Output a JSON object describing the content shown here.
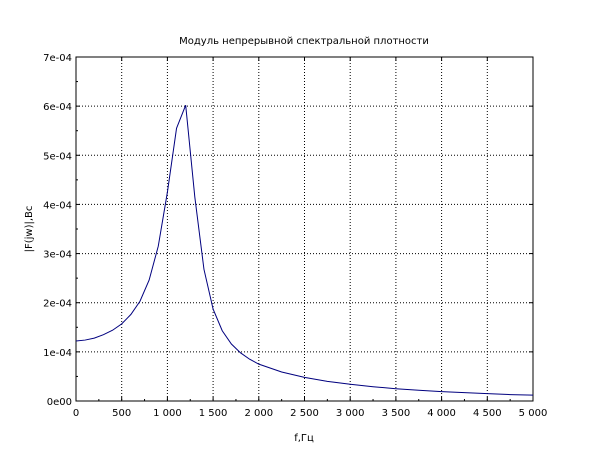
{
  "chart_data": {
    "type": "line",
    "title": "Модуль непрерывной спектральной плотности",
    "xlabel": "f,Гц",
    "ylabel": "|F(jw)|,Вс",
    "xlim": [
      0,
      5000
    ],
    "ylim": [
      0,
      0.0007
    ],
    "grid": true,
    "x_ticks": [
      0,
      500,
      1000,
      1500,
      2000,
      2500,
      3000,
      3500,
      4000,
      4500,
      5000
    ],
    "x_tick_labels": [
      "0",
      "500",
      "1 000",
      "1 500",
      "2 000",
      "2 500",
      "3 000",
      "3 500",
      "4 000",
      "4 500",
      "5 000"
    ],
    "y_ticks": [
      0,
      0.0001,
      0.0002,
      0.0003,
      0.0004,
      0.0005,
      0.0006,
      0.0007
    ],
    "y_tick_labels": [
      "0e00",
      "1e-04",
      "2e-04",
      "3e-04",
      "4e-04",
      "5e-04",
      "6e-04",
      "7e-04"
    ],
    "series": [
      {
        "color": "#00007f",
        "x": [
          0,
          100,
          200,
          300,
          400,
          500,
          600,
          700,
          800,
          900,
          1000,
          1100,
          1200,
          1300,
          1400,
          1500,
          1600,
          1700,
          1800,
          1900,
          2000,
          2250,
          2500,
          2750,
          3000,
          3250,
          3500,
          3750,
          4000,
          4250,
          4500,
          4750,
          5000
        ],
        "y": [
          0.000122,
          0.000124,
          0.000128,
          0.000135,
          0.000144,
          0.000157,
          0.000176,
          0.000203,
          0.000246,
          0.000315,
          0.000425,
          0.000555,
          0.000602,
          0.000415,
          0.000268,
          0.000187,
          0.000143,
          0.000116,
          9.8e-05,
          8.5e-05,
          7.5e-05,
          5.9e-05,
          4.8e-05,
          4e-05,
          3.4e-05,
          2.9e-05,
          2.5e-05,
          2.2e-05,
          1.9e-05,
          1.7e-05,
          1.5e-05,
          1.3e-05,
          1.2e-05
        ]
      }
    ]
  }
}
